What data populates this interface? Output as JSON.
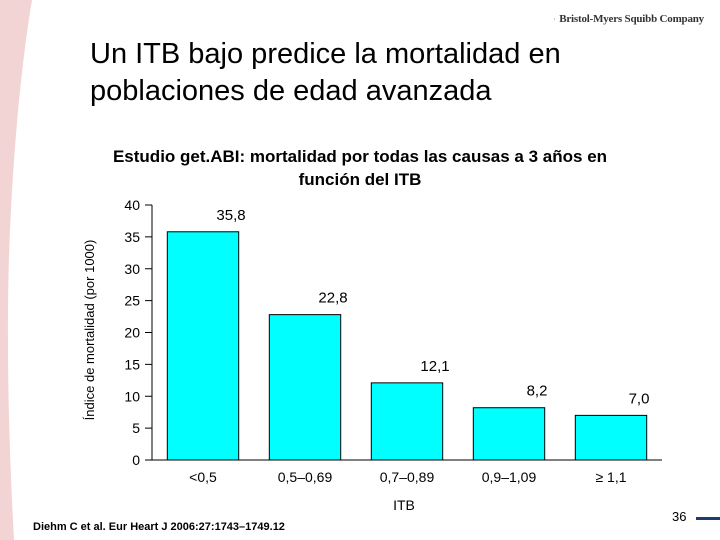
{
  "slide": {
    "title_line1": "Un ITB bajo predice la mortalidad en",
    "title_line2": "poblaciones de edad avanzada",
    "logo_text": "Bristol-Myers Squibb Company",
    "citation": "Diehm C et al. Eur Heart J 2006:27:1743–1749.12",
    "page_number": "36"
  },
  "colors": {
    "bar": "#00FFFF",
    "bar_stroke": "#000000",
    "swoosh": "#f2d4d4",
    "logo_mark": "#1f3a6e",
    "page_dash": "#1f3a6e"
  },
  "chart_data": {
    "type": "bar",
    "title_line1": "Estudio get.ABI: mortalidad por todas las causas a 3 años en",
    "title_line2": "función del ITB",
    "xlabel": "ITB",
    "ylabel": "Índice de mortalidad (por 1000)",
    "categories": [
      "<0,5",
      "0,5–0,69",
      "0,7–0,89",
      "0,9–1,09",
      "≥ 1,1"
    ],
    "values": [
      35.8,
      22.8,
      12.1,
      8.2,
      7.0
    ],
    "value_labels": [
      "35,8",
      "22,8",
      "12,1",
      "8,2",
      "7,0"
    ],
    "ylim": [
      0,
      40
    ],
    "yticks": [
      0,
      5,
      10,
      15,
      20,
      25,
      30,
      35,
      40
    ],
    "grid": false,
    "legend": "none"
  }
}
